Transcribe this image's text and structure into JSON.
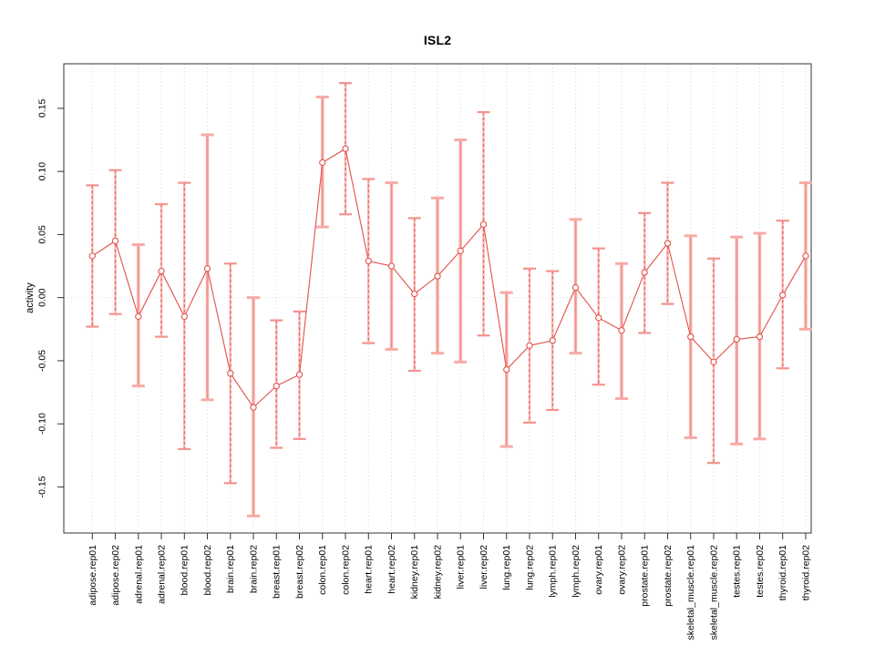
{
  "chart_data": {
    "type": "line",
    "subtype": "points-with-error-bars",
    "title": "ISL2",
    "xlabel": "",
    "ylabel": "activity",
    "ylim": [
      -0.1865,
      0.1853
    ],
    "yticks": [
      0.15,
      0.1,
      0.05,
      0.0,
      -0.05,
      -0.1,
      -0.15
    ],
    "ytick_labels": [
      "0.15",
      "0.10",
      "0.05",
      "0.00",
      "-0.05",
      "-0.10",
      "-0.15"
    ],
    "grid": {
      "vertical": "dotted-at-each-category",
      "horizontal": "dotted-zero-line-only"
    },
    "legend_position": "none",
    "categories": [
      "adipose.rep01",
      "adipose.rep02",
      "adrenal.rep01",
      "adrenal.rep02",
      "blood.rep01",
      "blood.rep02",
      "brain.rep01",
      "brain.rep02",
      "breast.rep01",
      "breast.rep02",
      "colon.rep01",
      "colon.rep02",
      "heart.rep01",
      "heart.rep02",
      "kidney.rep01",
      "kidney.rep02",
      "liver.rep01",
      "liver.rep02",
      "lung.rep01",
      "lung.rep02",
      "lymph.rep01",
      "lymph.rep02",
      "ovary.rep01",
      "ovary.rep02",
      "prostate.rep01",
      "prostate.rep02",
      "skeletal_muscle.rep01",
      "skeletal_muscle.rep02",
      "testes.rep01",
      "testes.rep02",
      "thyroid.rep01",
      "thyroid.rep02"
    ],
    "series": [
      {
        "name": "activity",
        "means": [
          0.033,
          0.045,
          -0.015,
          0.021,
          -0.015,
          0.023,
          -0.06,
          -0.087,
          -0.07,
          -0.061,
          0.107,
          0.118,
          0.029,
          0.025,
          0.003,
          0.017,
          0.037,
          0.058,
          -0.057,
          -0.038,
          -0.034,
          0.008,
          -0.016,
          -0.026,
          0.02,
          0.043,
          -0.031,
          -0.051,
          -0.033,
          -0.031,
          0.002,
          0.033
        ],
        "lows": [
          -0.023,
          -0.013,
          -0.07,
          -0.031,
          -0.12,
          -0.081,
          -0.147,
          -0.173,
          -0.119,
          -0.112,
          0.056,
          0.066,
          -0.036,
          -0.041,
          -0.058,
          -0.044,
          -0.051,
          -0.03,
          -0.118,
          -0.099,
          -0.089,
          -0.044,
          -0.069,
          -0.08,
          -0.028,
          -0.005,
          -0.111,
          -0.131,
          -0.116,
          -0.112,
          -0.056,
          -0.025
        ],
        "highs": [
          0.089,
          0.101,
          0.042,
          0.074,
          0.091,
          0.129,
          0.027,
          0.0,
          -0.018,
          -0.011,
          0.159,
          0.17,
          0.094,
          0.091,
          0.063,
          0.079,
          0.125,
          0.147,
          0.004,
          0.023,
          0.021,
          0.062,
          0.039,
          0.027,
          0.067,
          0.091,
          0.049,
          0.031,
          0.048,
          0.051,
          0.061,
          0.091
        ],
        "bar_styles": [
          "dashed",
          "dashed",
          "solid",
          "dashed",
          "dashed",
          "solid",
          "dashed",
          "solid",
          "dashed",
          "dashed",
          "solid",
          "dashed",
          "dashed",
          "solid",
          "dashed",
          "solid",
          "solid",
          "dashed",
          "solid",
          "dashed",
          "dashed",
          "solid",
          "dashed",
          "solid",
          "dashed",
          "dashed",
          "solid",
          "dashed",
          "solid",
          "solid",
          "dashed",
          "solid"
        ]
      }
    ],
    "colors": {
      "point": "#e2574f",
      "line": "#e2574f",
      "bar_dashed": "#e8635b",
      "bar_dashed_underlay": "#f9c0bc",
      "bar_dashed_cap": "#f2938d",
      "bar_solid": "#f7aba6",
      "bar_solid_core": "#ee8d87",
      "grid": "#d6d6d6",
      "zero_line": "#dcdcdc",
      "frame": "#333333",
      "text": "#000000"
    }
  }
}
